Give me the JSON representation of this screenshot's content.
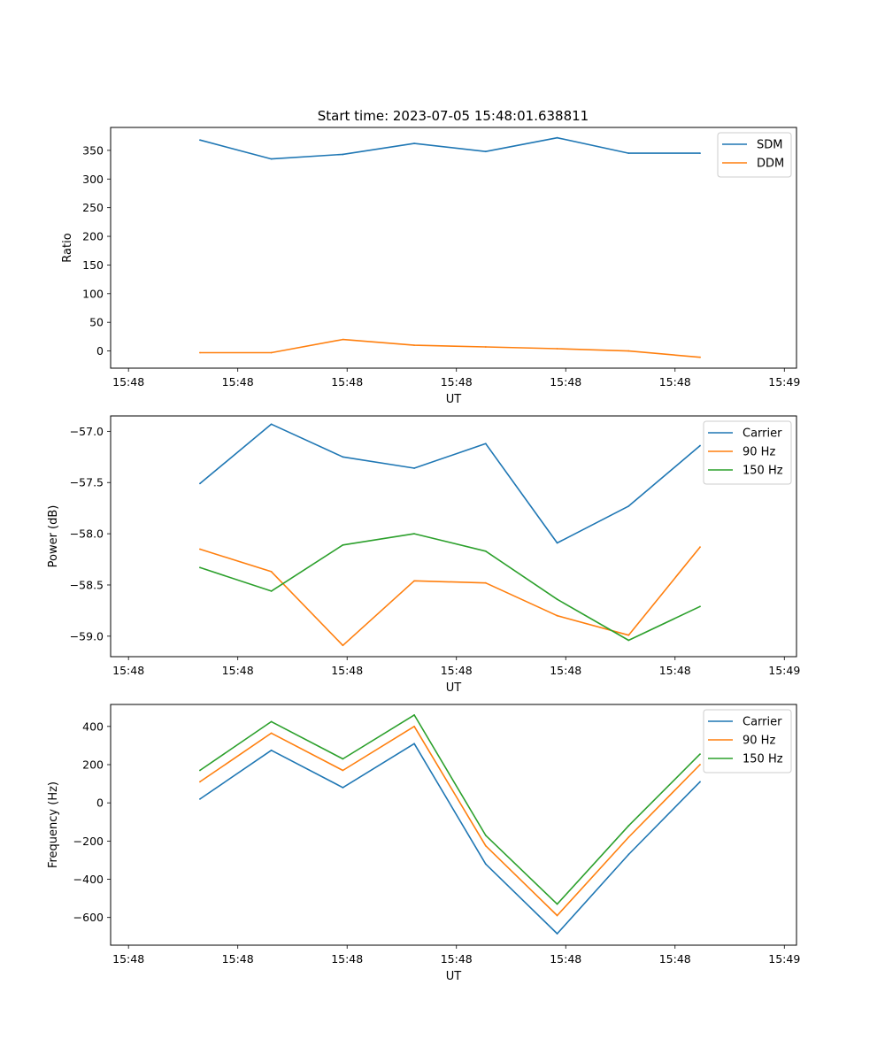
{
  "figure": {
    "title": "Start time: 2023-07-05 15:48:01.638811"
  },
  "chart_data": [
    {
      "id": "ratio",
      "type": "line",
      "title": "Start time: 2023-07-05 15:48:01.638811",
      "xlabel": "UT",
      "ylabel": "Ratio",
      "x": [
        1,
        2,
        3,
        4,
        5,
        6,
        7,
        8
      ],
      "xlim": [
        -0.25,
        9.35
      ],
      "x_ticks": [
        0,
        1.53,
        3.06,
        4.59,
        6.12,
        7.65,
        9.18
      ],
      "x_tick_labels": [
        "15:48",
        "15:48",
        "15:48",
        "15:48",
        "15:48",
        "15:48",
        "15:49"
      ],
      "ylim": [
        -30,
        390
      ],
      "y_ticks": [
        0,
        50,
        100,
        150,
        200,
        250,
        300,
        350
      ],
      "y_tick_labels": [
        "0",
        "50",
        "100",
        "150",
        "200",
        "250",
        "300",
        "350"
      ],
      "legend_position": "top-right",
      "series": [
        {
          "name": "SDM",
          "color": "#1f77b4",
          "values": [
            368,
            335,
            343,
            362,
            348,
            372,
            345,
            345
          ]
        },
        {
          "name": "DDM",
          "color": "#ff7f0e",
          "values": [
            -3,
            -3,
            20,
            10,
            7,
            4,
            0,
            -11
          ]
        }
      ]
    },
    {
      "id": "power",
      "type": "line",
      "title": "",
      "xlabel": "UT",
      "ylabel": "Power (dB)",
      "x": [
        1,
        2,
        3,
        4,
        5,
        6,
        7,
        8
      ],
      "xlim": [
        -0.25,
        9.35
      ],
      "x_ticks": [
        0,
        1.53,
        3.06,
        4.59,
        6.12,
        7.65,
        9.18
      ],
      "x_tick_labels": [
        "15:48",
        "15:48",
        "15:48",
        "15:48",
        "15:48",
        "15:48",
        "15:49"
      ],
      "ylim": [
        -59.2,
        -56.85
      ],
      "y_ticks": [
        -59.0,
        -58.5,
        -58.0,
        -57.5,
        -57.0
      ],
      "y_tick_labels": [
        "−59.0",
        "−58.5",
        "−58.0",
        "−57.5",
        "−57.0"
      ],
      "legend_position": "top-right",
      "series": [
        {
          "name": "Carrier",
          "color": "#1f77b4",
          "values": [
            -57.51,
            -56.93,
            -57.25,
            -57.36,
            -57.12,
            -58.09,
            -57.73,
            -57.14
          ]
        },
        {
          "name": "90 Hz",
          "color": "#ff7f0e",
          "values": [
            -58.15,
            -58.37,
            -59.09,
            -58.46,
            -58.48,
            -58.8,
            -58.99,
            -58.13
          ]
        },
        {
          "name": "150 Hz",
          "color": "#2ca02c",
          "values": [
            -58.33,
            -58.56,
            -58.11,
            -58.0,
            -58.17,
            -58.64,
            -59.04,
            -58.71
          ]
        }
      ]
    },
    {
      "id": "frequency",
      "type": "line",
      "title": "",
      "xlabel": "UT",
      "ylabel": "Frequency (Hz)",
      "x": [
        1,
        2,
        3,
        4,
        5,
        6,
        7,
        8
      ],
      "xlim": [
        -0.25,
        9.35
      ],
      "x_ticks": [
        0,
        1.53,
        3.06,
        4.59,
        6.12,
        7.65,
        9.18
      ],
      "x_tick_labels": [
        "15:48",
        "15:48",
        "15:48",
        "15:48",
        "15:48",
        "15:48",
        "15:49"
      ],
      "ylim": [
        -745,
        515
      ],
      "y_ticks": [
        -600,
        -400,
        -200,
        0,
        200,
        400
      ],
      "y_tick_labels": [
        "−600",
        "−400",
        "−200",
        "0",
        "200",
        "400"
      ],
      "legend_position": "top-right",
      "series": [
        {
          "name": "Carrier",
          "color": "#1f77b4",
          "values": [
            20,
            275,
            80,
            310,
            -320,
            -685,
            -270,
            110
          ]
        },
        {
          "name": "90 Hz",
          "color": "#ff7f0e",
          "values": [
            110,
            365,
            170,
            400,
            -225,
            -590,
            -180,
            200
          ]
        },
        {
          "name": "150 Hz",
          "color": "#2ca02c",
          "values": [
            170,
            425,
            230,
            460,
            -170,
            -530,
            -120,
            255
          ]
        }
      ]
    }
  ]
}
